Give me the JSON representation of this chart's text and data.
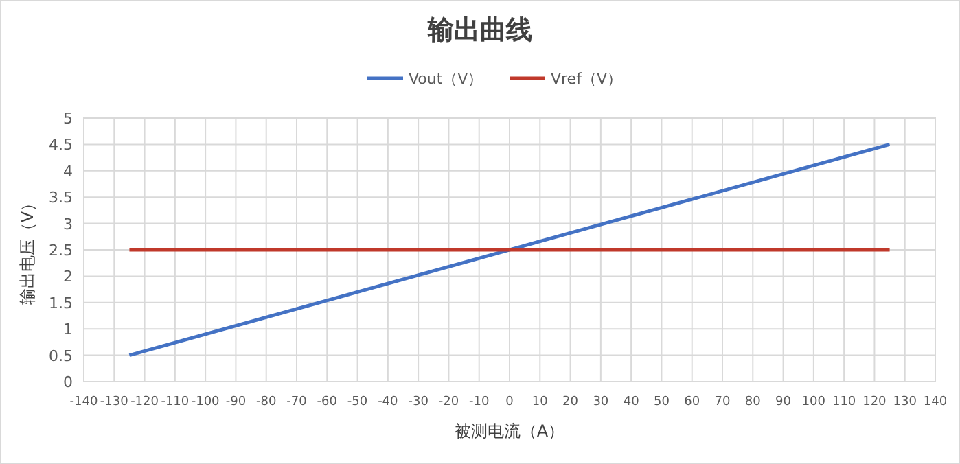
{
  "chart_data": {
    "type": "line",
    "title": "输出曲线",
    "xlabel": "被测电流（A）",
    "ylabel": "输出电压（V）",
    "x": [
      -125,
      125
    ],
    "series": [
      {
        "name": "Vout（V）",
        "color": "#4472c4",
        "values": [
          0.5,
          4.5
        ]
      },
      {
        "name": "Vref（V）",
        "color": "#c0392b",
        "values": [
          2.5,
          2.5
        ]
      }
    ],
    "xlim": [
      -140,
      140
    ],
    "xticks": [
      -140,
      -130,
      -120,
      -110,
      -100,
      -90,
      -80,
      -70,
      -60,
      -50,
      -40,
      -30,
      -20,
      -10,
      0,
      10,
      20,
      30,
      40,
      50,
      60,
      70,
      80,
      90,
      100,
      110,
      120,
      130,
      140
    ],
    "ylim": [
      0,
      5
    ],
    "yticks": [
      0,
      0.5,
      1,
      1.5,
      2,
      2.5,
      3,
      3.5,
      4,
      4.5,
      5
    ],
    "grid": true,
    "legend": "top",
    "marker": "none",
    "line_style": "solid"
  }
}
